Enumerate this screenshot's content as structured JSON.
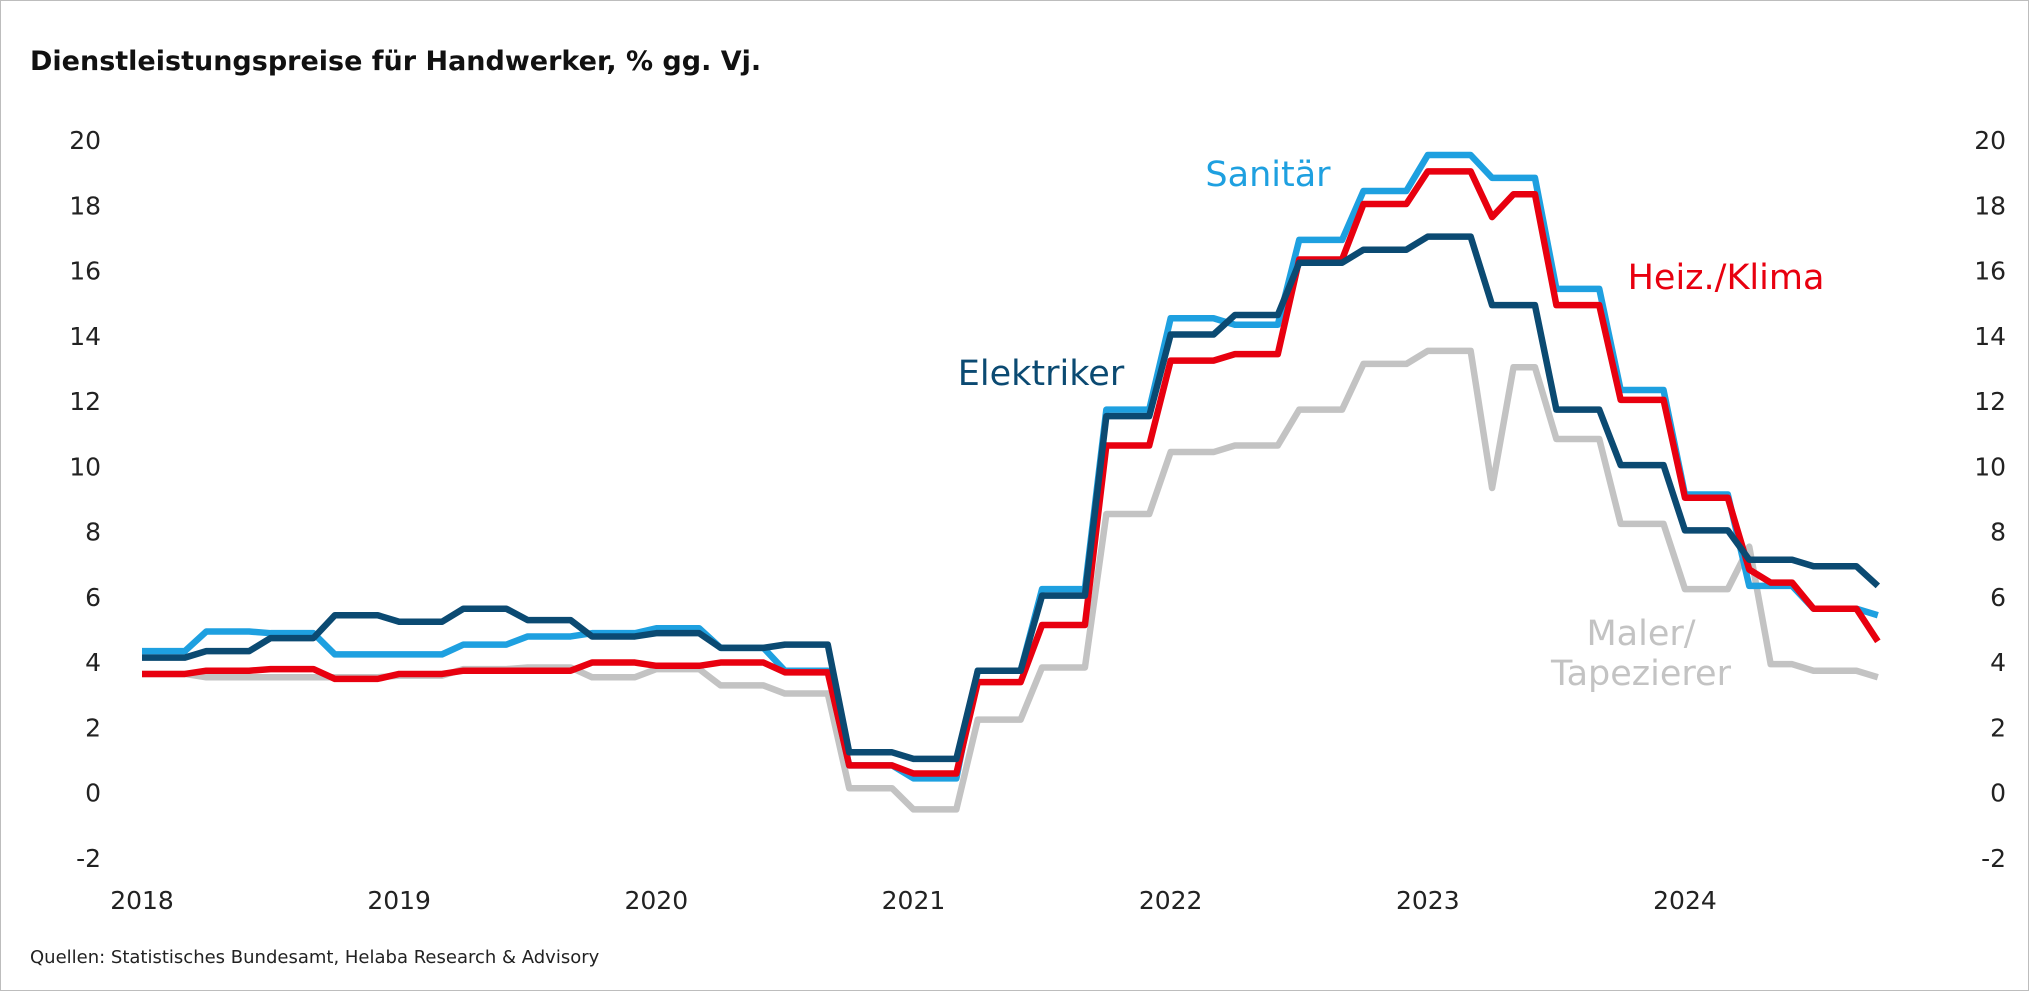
{
  "chart_data": {
    "type": "line",
    "title": "Dienstleistungspreise für Handwerker, % gg. Vj.",
    "source": "Quellen: Statistisches Bundesamt, Helaba Research & Advisory",
    "categories": [
      "2018",
      null,
      null,
      null,
      null,
      null,
      null,
      null,
      null,
      null,
      null,
      null,
      "2019",
      null,
      null,
      null,
      null,
      null,
      null,
      null,
      null,
      null,
      null,
      null,
      "2020",
      null,
      null,
      null,
      null,
      null,
      null,
      null,
      null,
      null,
      null,
      null,
      "2021",
      null,
      null,
      null,
      null,
      null,
      null,
      null,
      null,
      null,
      null,
      null,
      "2022",
      null,
      null,
      null,
      null,
      null,
      null,
      null,
      null,
      null,
      null,
      null,
      "2023",
      null,
      null,
      null,
      null,
      null,
      null,
      null,
      null,
      null,
      null,
      null,
      "2024",
      null,
      null,
      null,
      null,
      null,
      null,
      null,
      null,
      null
    ],
    "ylim": [
      -2,
      20
    ],
    "yticks": [
      -2,
      0,
      2,
      4,
      6,
      8,
      10,
      12,
      14,
      16,
      18,
      20
    ],
    "y2lim": [
      -2,
      20
    ],
    "y2ticks": [
      -2,
      0,
      2,
      4,
      6,
      8,
      10,
      12,
      14,
      16,
      18,
      20
    ],
    "grid": false,
    "series": [
      {
        "name": "Maler/\nTapezierer",
        "color": "#c3c3c3",
        "values": [
          3.7,
          3.7,
          3.7,
          3.6,
          3.6,
          3.6,
          3.6,
          3.6,
          3.6,
          3.6,
          3.6,
          3.6,
          3.65,
          3.65,
          3.65,
          3.85,
          3.85,
          3.85,
          3.9,
          3.9,
          3.9,
          3.6,
          3.6,
          3.6,
          3.85,
          3.85,
          3.85,
          3.35,
          3.35,
          3.35,
          3.1,
          3.1,
          3.1,
          0.2,
          0.2,
          0.2,
          -0.45,
          -0.45,
          -0.45,
          2.3,
          2.3,
          2.3,
          3.9,
          3.9,
          3.9,
          8.6,
          8.6,
          8.6,
          10.5,
          10.5,
          10.5,
          10.7,
          10.7,
          10.7,
          11.8,
          11.8,
          11.8,
          13.2,
          13.2,
          13.2,
          13.6,
          13.6,
          13.6,
          9.4,
          13.1,
          13.1,
          10.9,
          10.9,
          10.9,
          8.3,
          8.3,
          8.3,
          6.3,
          6.3,
          6.3,
          7.6,
          4.0,
          4.0,
          3.8,
          3.8,
          3.8,
          3.6
        ]
      },
      {
        "name": "Sanitär",
        "color": "#1ea0e0",
        "values": [
          4.4,
          4.4,
          4.4,
          5.0,
          5.0,
          5.0,
          4.95,
          4.95,
          4.95,
          4.3,
          4.3,
          4.3,
          4.3,
          4.3,
          4.3,
          4.6,
          4.6,
          4.6,
          4.85,
          4.85,
          4.85,
          4.95,
          4.95,
          4.95,
          5.1,
          5.1,
          5.1,
          4.5,
          4.5,
          4.5,
          3.8,
          3.8,
          3.8,
          0.9,
          0.9,
          0.9,
          0.5,
          0.5,
          0.5,
          3.8,
          3.8,
          3.8,
          6.3,
          6.3,
          6.3,
          11.8,
          11.8,
          11.8,
          14.6,
          14.6,
          14.6,
          14.4,
          14.4,
          14.4,
          17.0,
          17.0,
          17.0,
          18.5,
          18.5,
          18.5,
          19.6,
          19.6,
          19.6,
          18.9,
          18.9,
          18.9,
          15.5,
          15.5,
          15.5,
          12.4,
          12.4,
          12.4,
          9.2,
          9.2,
          9.2,
          6.4,
          6.4,
          6.4,
          5.7,
          5.7,
          5.7,
          5.5
        ]
      },
      {
        "name": "Heiz./Klima",
        "color": "#e8000f",
        "values": [
          3.7,
          3.7,
          3.7,
          3.8,
          3.8,
          3.8,
          3.85,
          3.85,
          3.85,
          3.55,
          3.55,
          3.55,
          3.7,
          3.7,
          3.7,
          3.8,
          3.8,
          3.8,
          3.8,
          3.8,
          3.8,
          4.05,
          4.05,
          4.05,
          3.95,
          3.95,
          3.95,
          4.05,
          4.05,
          4.05,
          3.75,
          3.75,
          3.75,
          0.9,
          0.9,
          0.9,
          0.65,
          0.65,
          0.65,
          3.45,
          3.45,
          3.45,
          5.2,
          5.2,
          5.2,
          10.7,
          10.7,
          10.7,
          13.3,
          13.3,
          13.3,
          13.5,
          13.5,
          13.5,
          16.4,
          16.4,
          16.4,
          18.1,
          18.1,
          18.1,
          19.1,
          19.1,
          19.1,
          17.7,
          18.4,
          18.4,
          15.0,
          15.0,
          15.0,
          12.1,
          12.1,
          12.1,
          9.1,
          9.1,
          9.1,
          6.9,
          6.5,
          6.5,
          5.7,
          5.7,
          5.7,
          4.7
        ]
      },
      {
        "name": "Elektriker",
        "color": "#0b4a72",
        "values": [
          4.2,
          4.2,
          4.2,
          4.4,
          4.4,
          4.4,
          4.8,
          4.8,
          4.8,
          5.5,
          5.5,
          5.5,
          5.3,
          5.3,
          5.3,
          5.7,
          5.7,
          5.7,
          5.35,
          5.35,
          5.35,
          4.85,
          4.85,
          4.85,
          4.95,
          4.95,
          4.95,
          4.5,
          4.5,
          4.5,
          4.6,
          4.6,
          4.6,
          1.3,
          1.3,
          1.3,
          1.1,
          1.1,
          1.1,
          3.8,
          3.8,
          3.8,
          6.1,
          6.1,
          6.1,
          11.6,
          11.6,
          11.6,
          14.1,
          14.1,
          14.1,
          14.7,
          14.7,
          14.7,
          16.3,
          16.3,
          16.3,
          16.7,
          16.7,
          16.7,
          17.1,
          17.1,
          17.1,
          15.0,
          15.0,
          15.0,
          11.8,
          11.8,
          11.8,
          10.1,
          10.1,
          10.1,
          8.1,
          8.1,
          8.1,
          7.2,
          7.2,
          7.2,
          7.0,
          7.0,
          7.0,
          6.4
        ]
      }
    ]
  }
}
